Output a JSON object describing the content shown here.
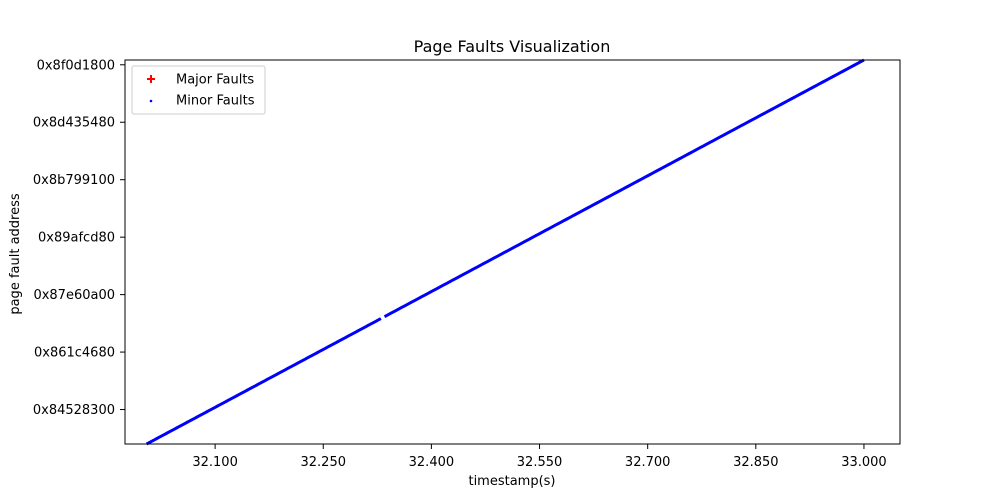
{
  "chart_data": {
    "type": "scatter",
    "title": "Page Faults Visualization",
    "xlabel": "timestamp(s)",
    "ylabel": "page fault address",
    "xlim": [
      31.975,
      33.05
    ],
    "ylim": [
      2202000000,
      2402500000
    ],
    "x_ticks": [
      {
        "value": 32.1,
        "label": "32.100"
      },
      {
        "value": 32.25,
        "label": "32.250"
      },
      {
        "value": 32.4,
        "label": "32.400"
      },
      {
        "value": 32.55,
        "label": "32.550"
      },
      {
        "value": 32.7,
        "label": "32.700"
      },
      {
        "value": 32.85,
        "label": "32.850"
      },
      {
        "value": 33.0,
        "label": "33.000"
      }
    ],
    "y_ticks": [
      {
        "value": 2219999999,
        "label": "0x84528300"
      },
      {
        "value": 2250000001,
        "label": "0x861c4680"
      },
      {
        "value": 2280000000,
        "label": "0x87e60a00"
      },
      {
        "value": 2309999999,
        "label": "0x89afcd80"
      },
      {
        "value": 2340000000,
        "label": "0x8b799100"
      },
      {
        "value": 2369999999,
        "label": "0x8d435480"
      },
      {
        "value": 2400000000,
        "label": "0x8f0d1800"
      }
    ],
    "legend": {
      "position": "top-left",
      "entries": [
        {
          "name": "Major Faults",
          "marker": "plus",
          "color": "#ff0000"
        },
        {
          "name": "Minor Faults",
          "marker": "dot",
          "color": "#0000ff"
        }
      ]
    },
    "series": [
      {
        "name": "Minor Faults",
        "color": "#0000ff",
        "segments": [
          {
            "x": [
              32.005,
              33.0
            ],
            "y": [
              2202000000,
              2402500000
            ],
            "from": 32.005,
            "to": 32.33
          },
          {
            "x": [
              32.005,
              33.0
            ],
            "y": [
              2202000000,
              2402500000
            ],
            "from": 32.335,
            "to": 33.0
          }
        ]
      },
      {
        "name": "Major Faults",
        "color": "#ff0000",
        "points": []
      }
    ]
  }
}
